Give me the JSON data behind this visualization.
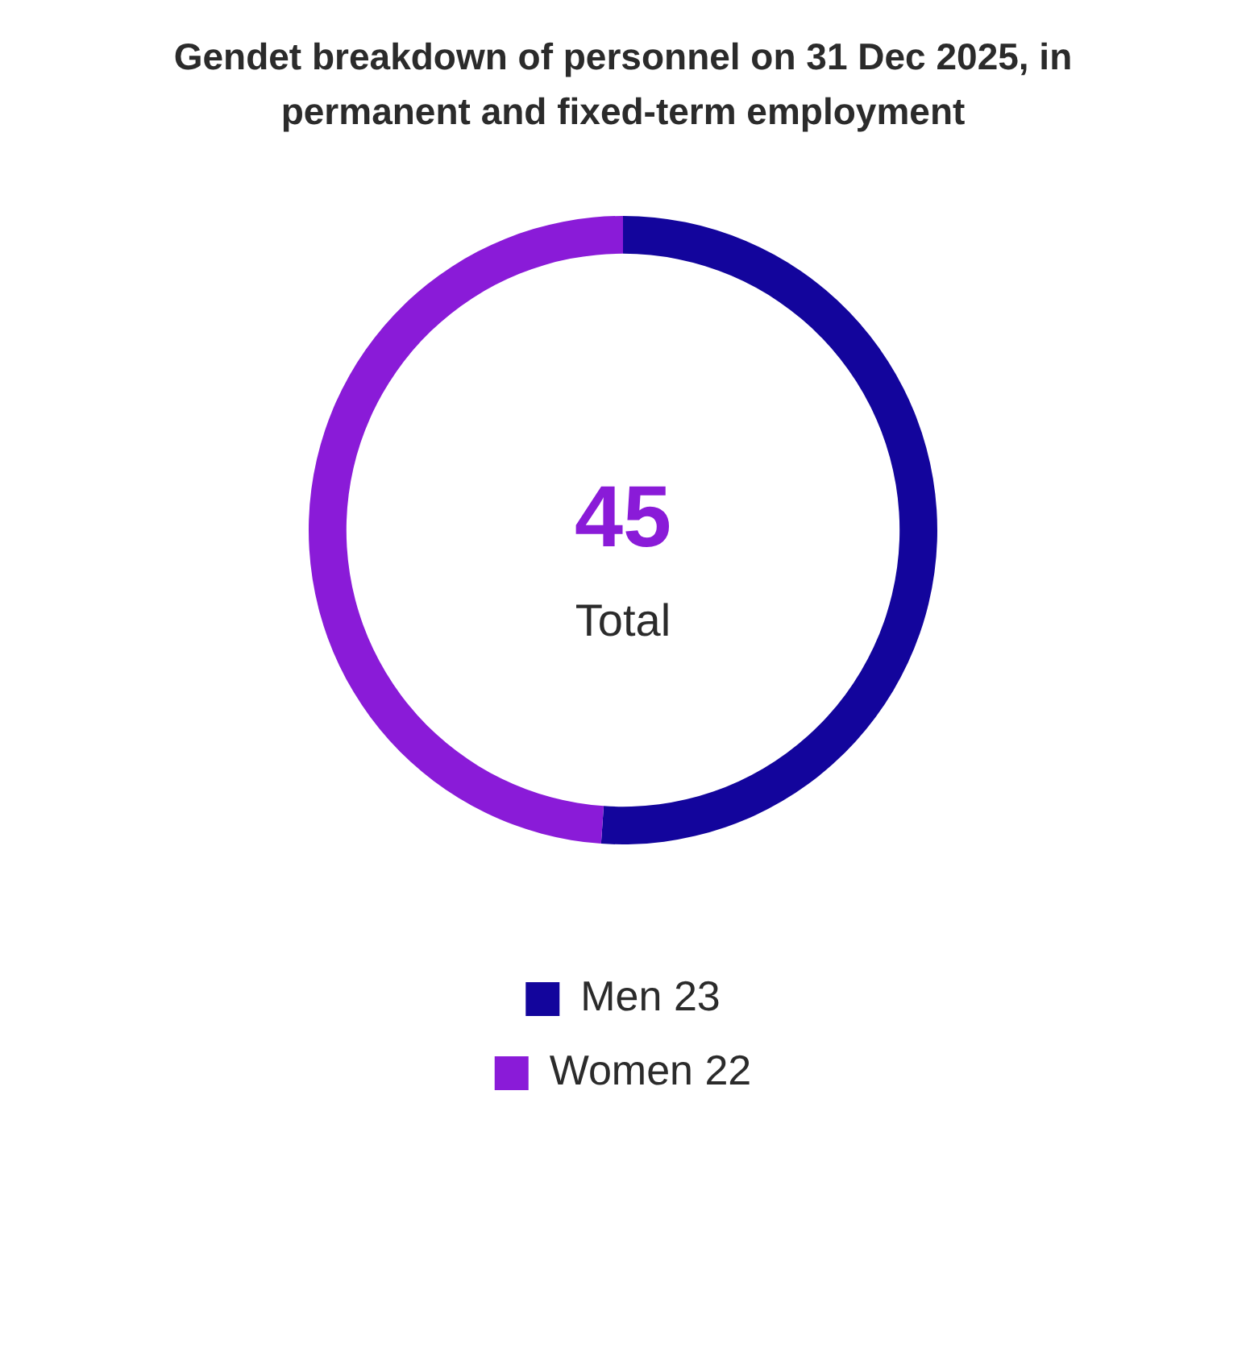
{
  "chart_data": {
    "type": "donut",
    "title": "Gendet breakdown of personnel on 31 Dec 2025, in permanent and fixed-term employment",
    "categories": [
      "Men 23",
      "Women 22"
    ],
    "values": [
      23,
      22
    ],
    "colors": [
      "#13059c",
      "#8a1bd8"
    ],
    "legend": "bottom",
    "annotations": [
      "45",
      "Total"
    ]
  }
}
